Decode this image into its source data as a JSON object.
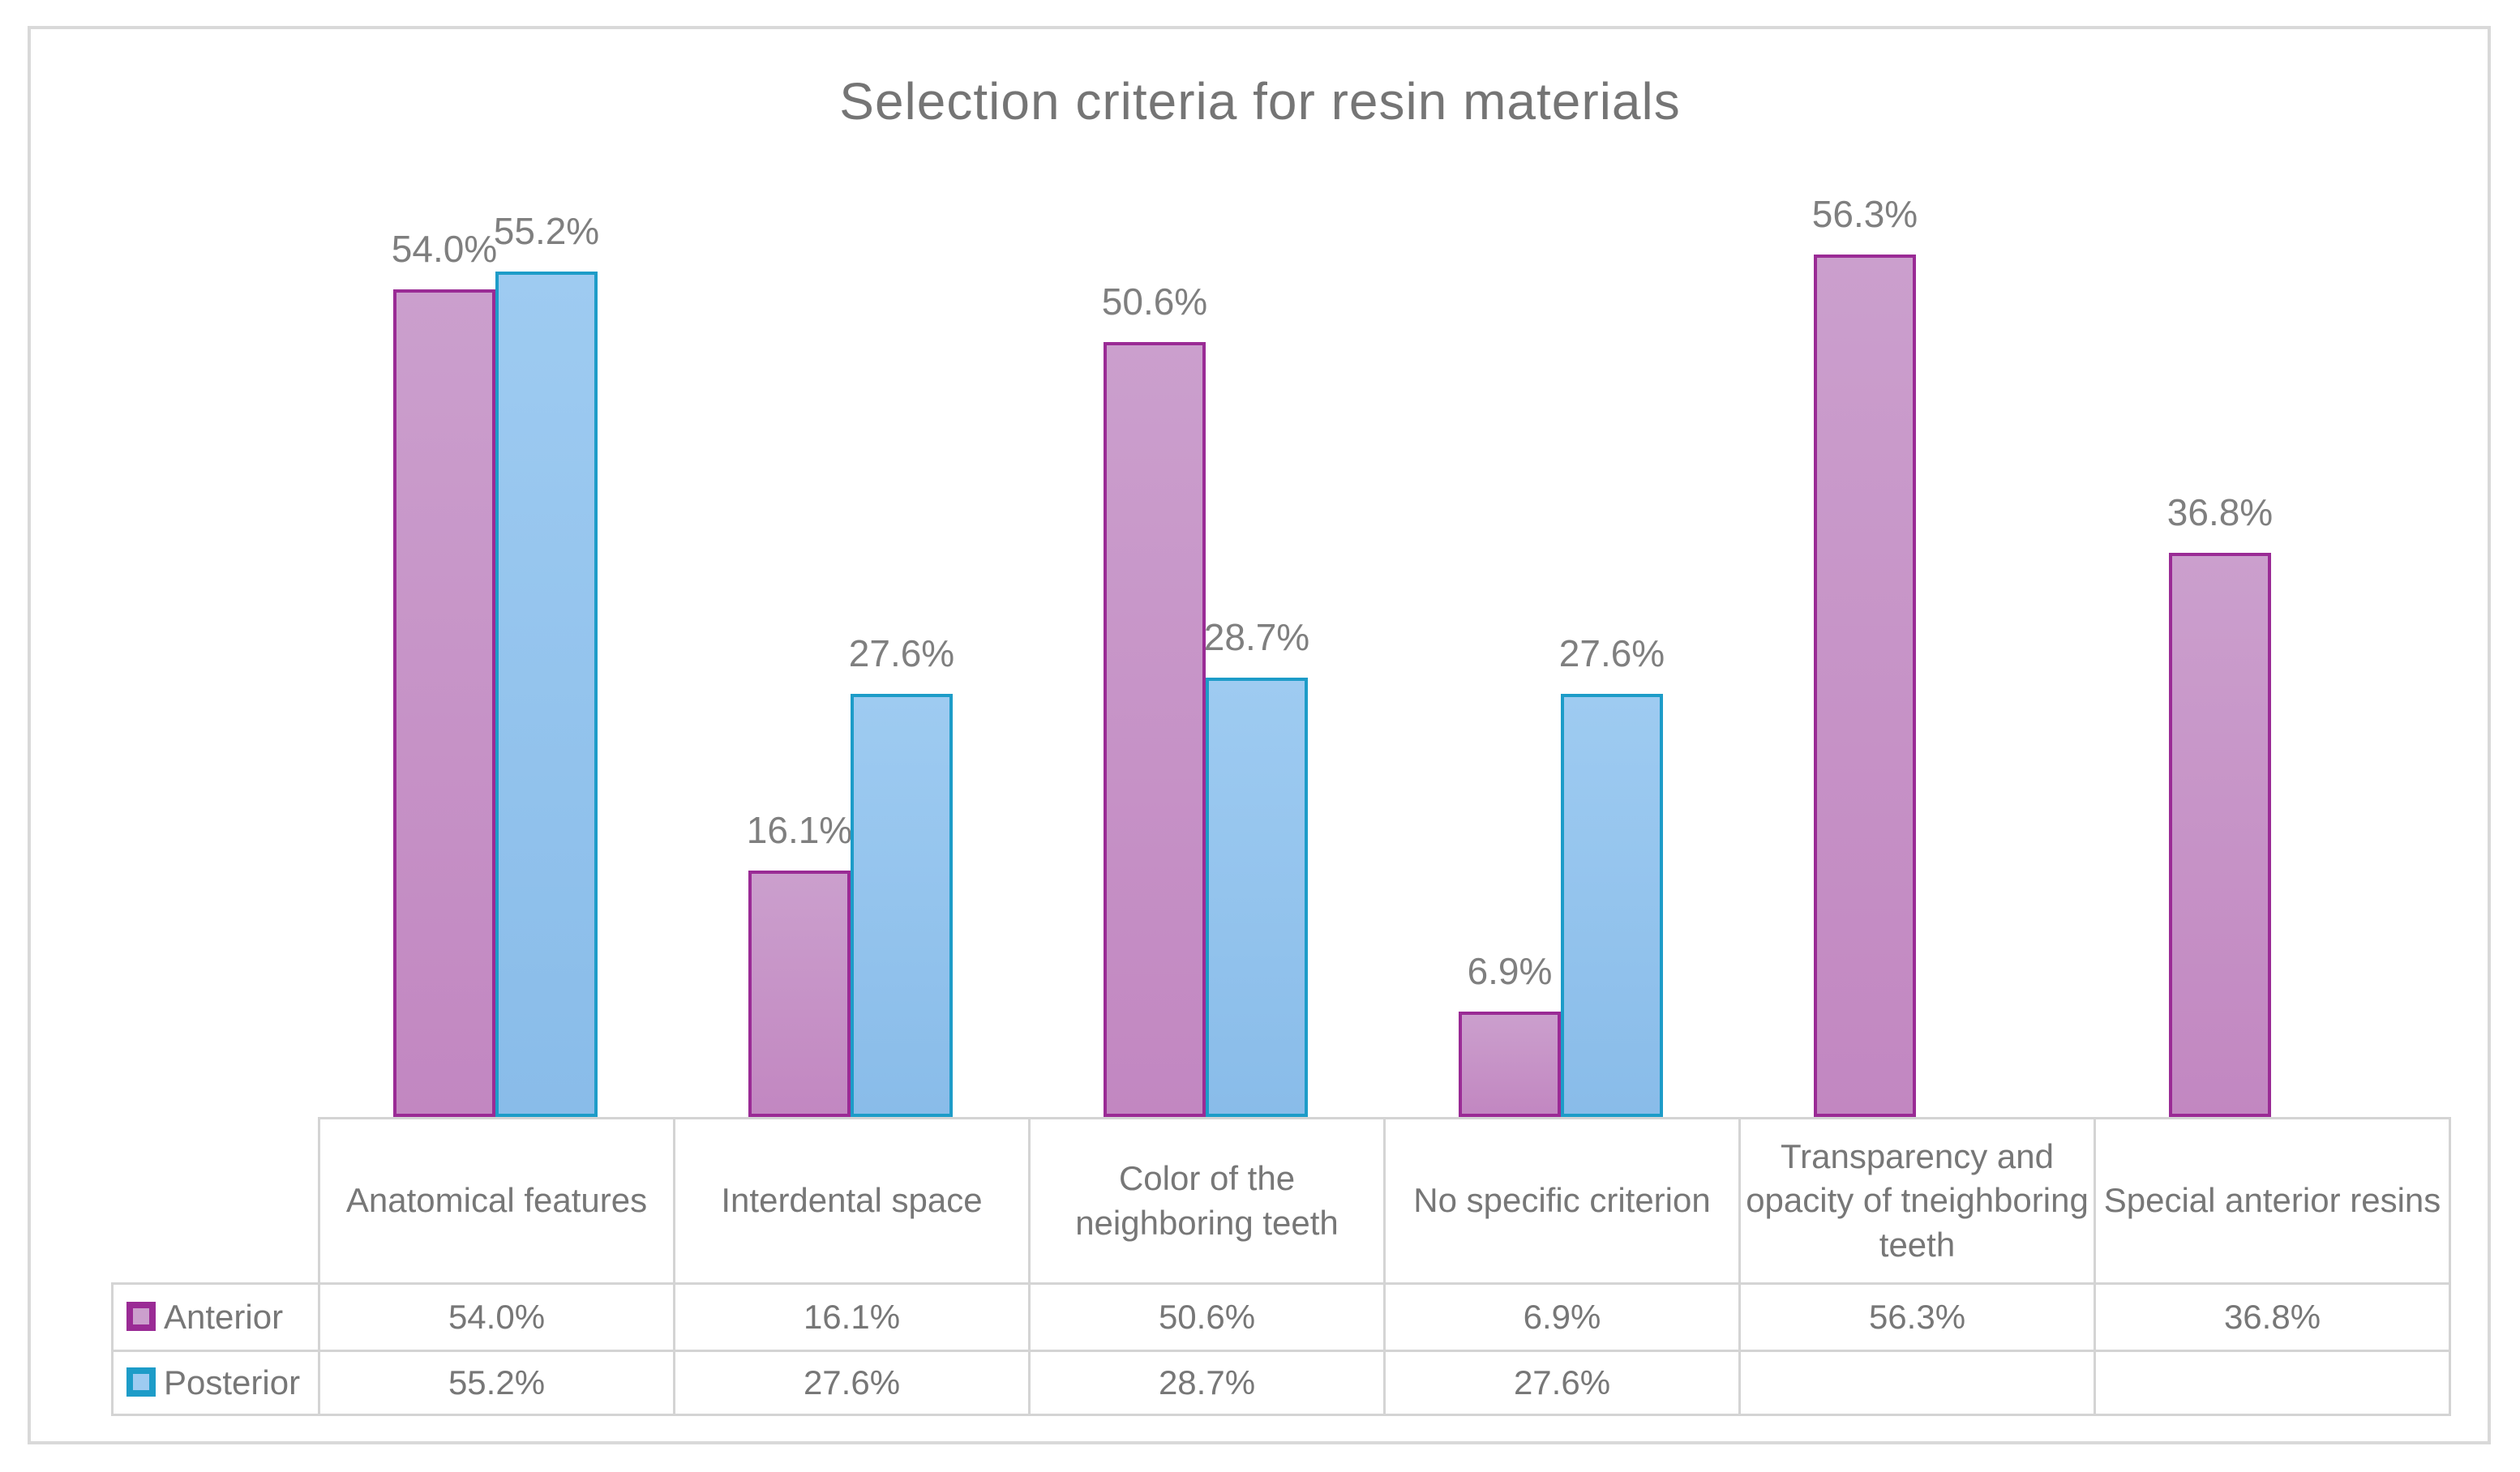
{
  "figure": {
    "background": "#ffffff",
    "frame_border_color": "#d9d9d9",
    "table_border_color": "#d4d4d4",
    "table_text_color": "#777777"
  },
  "chart_data": {
    "type": "bar",
    "title": "Selection criteria for resin materials",
    "title_color": "#757575",
    "label_color": "#7f7f7f",
    "value_suffix": "%",
    "ylim": [
      0,
      60
    ],
    "gridlines": false,
    "axes_shown": false,
    "legend_position": "data-table-left",
    "data_table_shown": true,
    "categories": [
      "Anatomical features",
      "Interdental space",
      "Color of the neighboring teeth",
      "No specific criterion",
      "Transparency and opacity of tneighboring teeth",
      "Special anterior resins"
    ],
    "series": [
      {
        "name": "Anterior",
        "fill_top": "#cb9fcd",
        "fill_bottom": "#c287c1",
        "border": "#9a2b95",
        "values": [
          54.0,
          16.1,
          50.6,
          6.9,
          56.3,
          36.8
        ],
        "labels": [
          "54.0%",
          "16.1%",
          "50.6%",
          "6.9%",
          "56.3%",
          "36.8%"
        ]
      },
      {
        "name": "Posterior",
        "fill_top": "#9ecbf1",
        "fill_bottom": "#89bce9",
        "border": "#1d9cc8",
        "values": [
          55.2,
          27.6,
          28.7,
          27.6,
          null,
          null
        ],
        "labels": [
          "55.2%",
          "27.6%",
          "28.7%",
          "27.6%",
          "",
          ""
        ]
      }
    ]
  }
}
